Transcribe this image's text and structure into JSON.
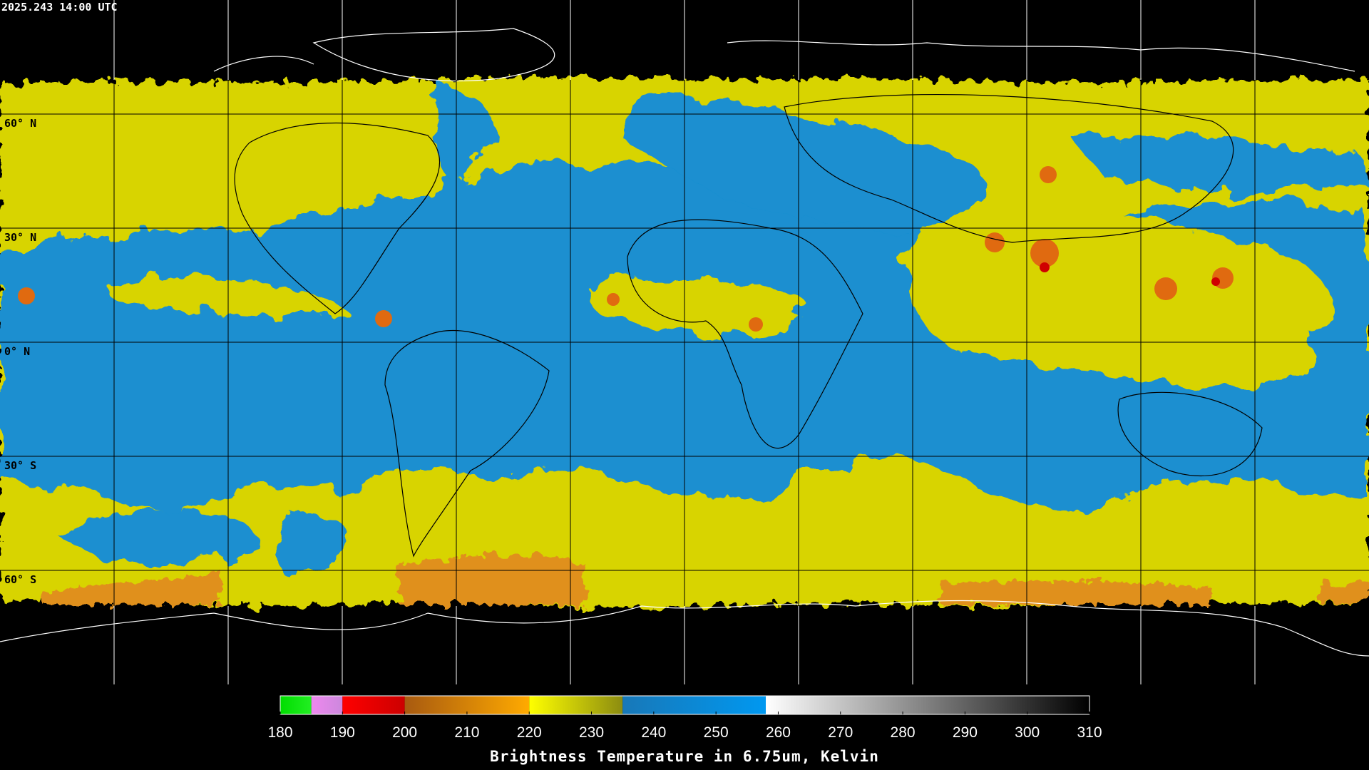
{
  "timestamp": "2025.243 14:00 UTC",
  "grid_labels": [
    "60° N",
    "30° N",
    "0° N",
    "30° S",
    "60° S"
  ],
  "colorbar": {
    "title": "Brightness Temperature in 6.75um, Kelvin",
    "range": [
      180,
      310
    ],
    "ticks": [
      180,
      190,
      200,
      210,
      220,
      230,
      240,
      250,
      260,
      270,
      280,
      290,
      300,
      310
    ],
    "segments": [
      {
        "from": 180,
        "to": 185,
        "colors": [
          "#00dd00",
          "#22ee22"
        ]
      },
      {
        "from": 185,
        "to": 190,
        "colors": [
          "#ee88ee",
          "#cc88dd"
        ]
      },
      {
        "from": 190,
        "to": 200,
        "colors": [
          "#ff0000",
          "#cc0000"
        ]
      },
      {
        "from": 200,
        "to": 220,
        "colors": [
          "#a85a10",
          "#ffaa00"
        ]
      },
      {
        "from": 220,
        "to": 235,
        "colors": [
          "#ffff00",
          "#8c8c10"
        ]
      },
      {
        "from": 235,
        "to": 258,
        "colors": [
          "#1878b8",
          "#0098f0"
        ]
      },
      {
        "from": 258,
        "to": 310,
        "colors": [
          "#ffffff",
          "#000000"
        ]
      }
    ]
  }
}
